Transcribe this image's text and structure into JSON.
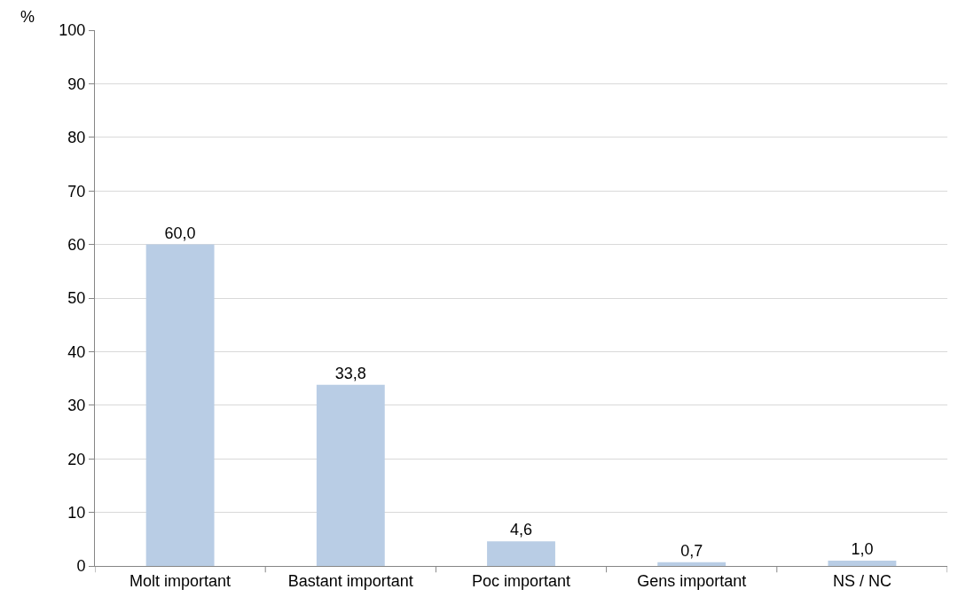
{
  "chart_data": {
    "type": "bar",
    "ylabel": "%",
    "categories": [
      "Molt important",
      "Bastant important",
      "Poc important",
      "Gens important",
      "NS / NC"
    ],
    "values": [
      60.0,
      33.8,
      4.6,
      0.7,
      1.0
    ],
    "value_labels": [
      "60,0",
      "33,8",
      "4,6",
      "0,7",
      "1,0"
    ],
    "color": "#b9cde5",
    "ylim": [
      0,
      100
    ],
    "yticks": [
      0,
      10,
      20,
      30,
      40,
      50,
      60,
      70,
      80,
      90,
      100
    ],
    "grid": "y"
  }
}
